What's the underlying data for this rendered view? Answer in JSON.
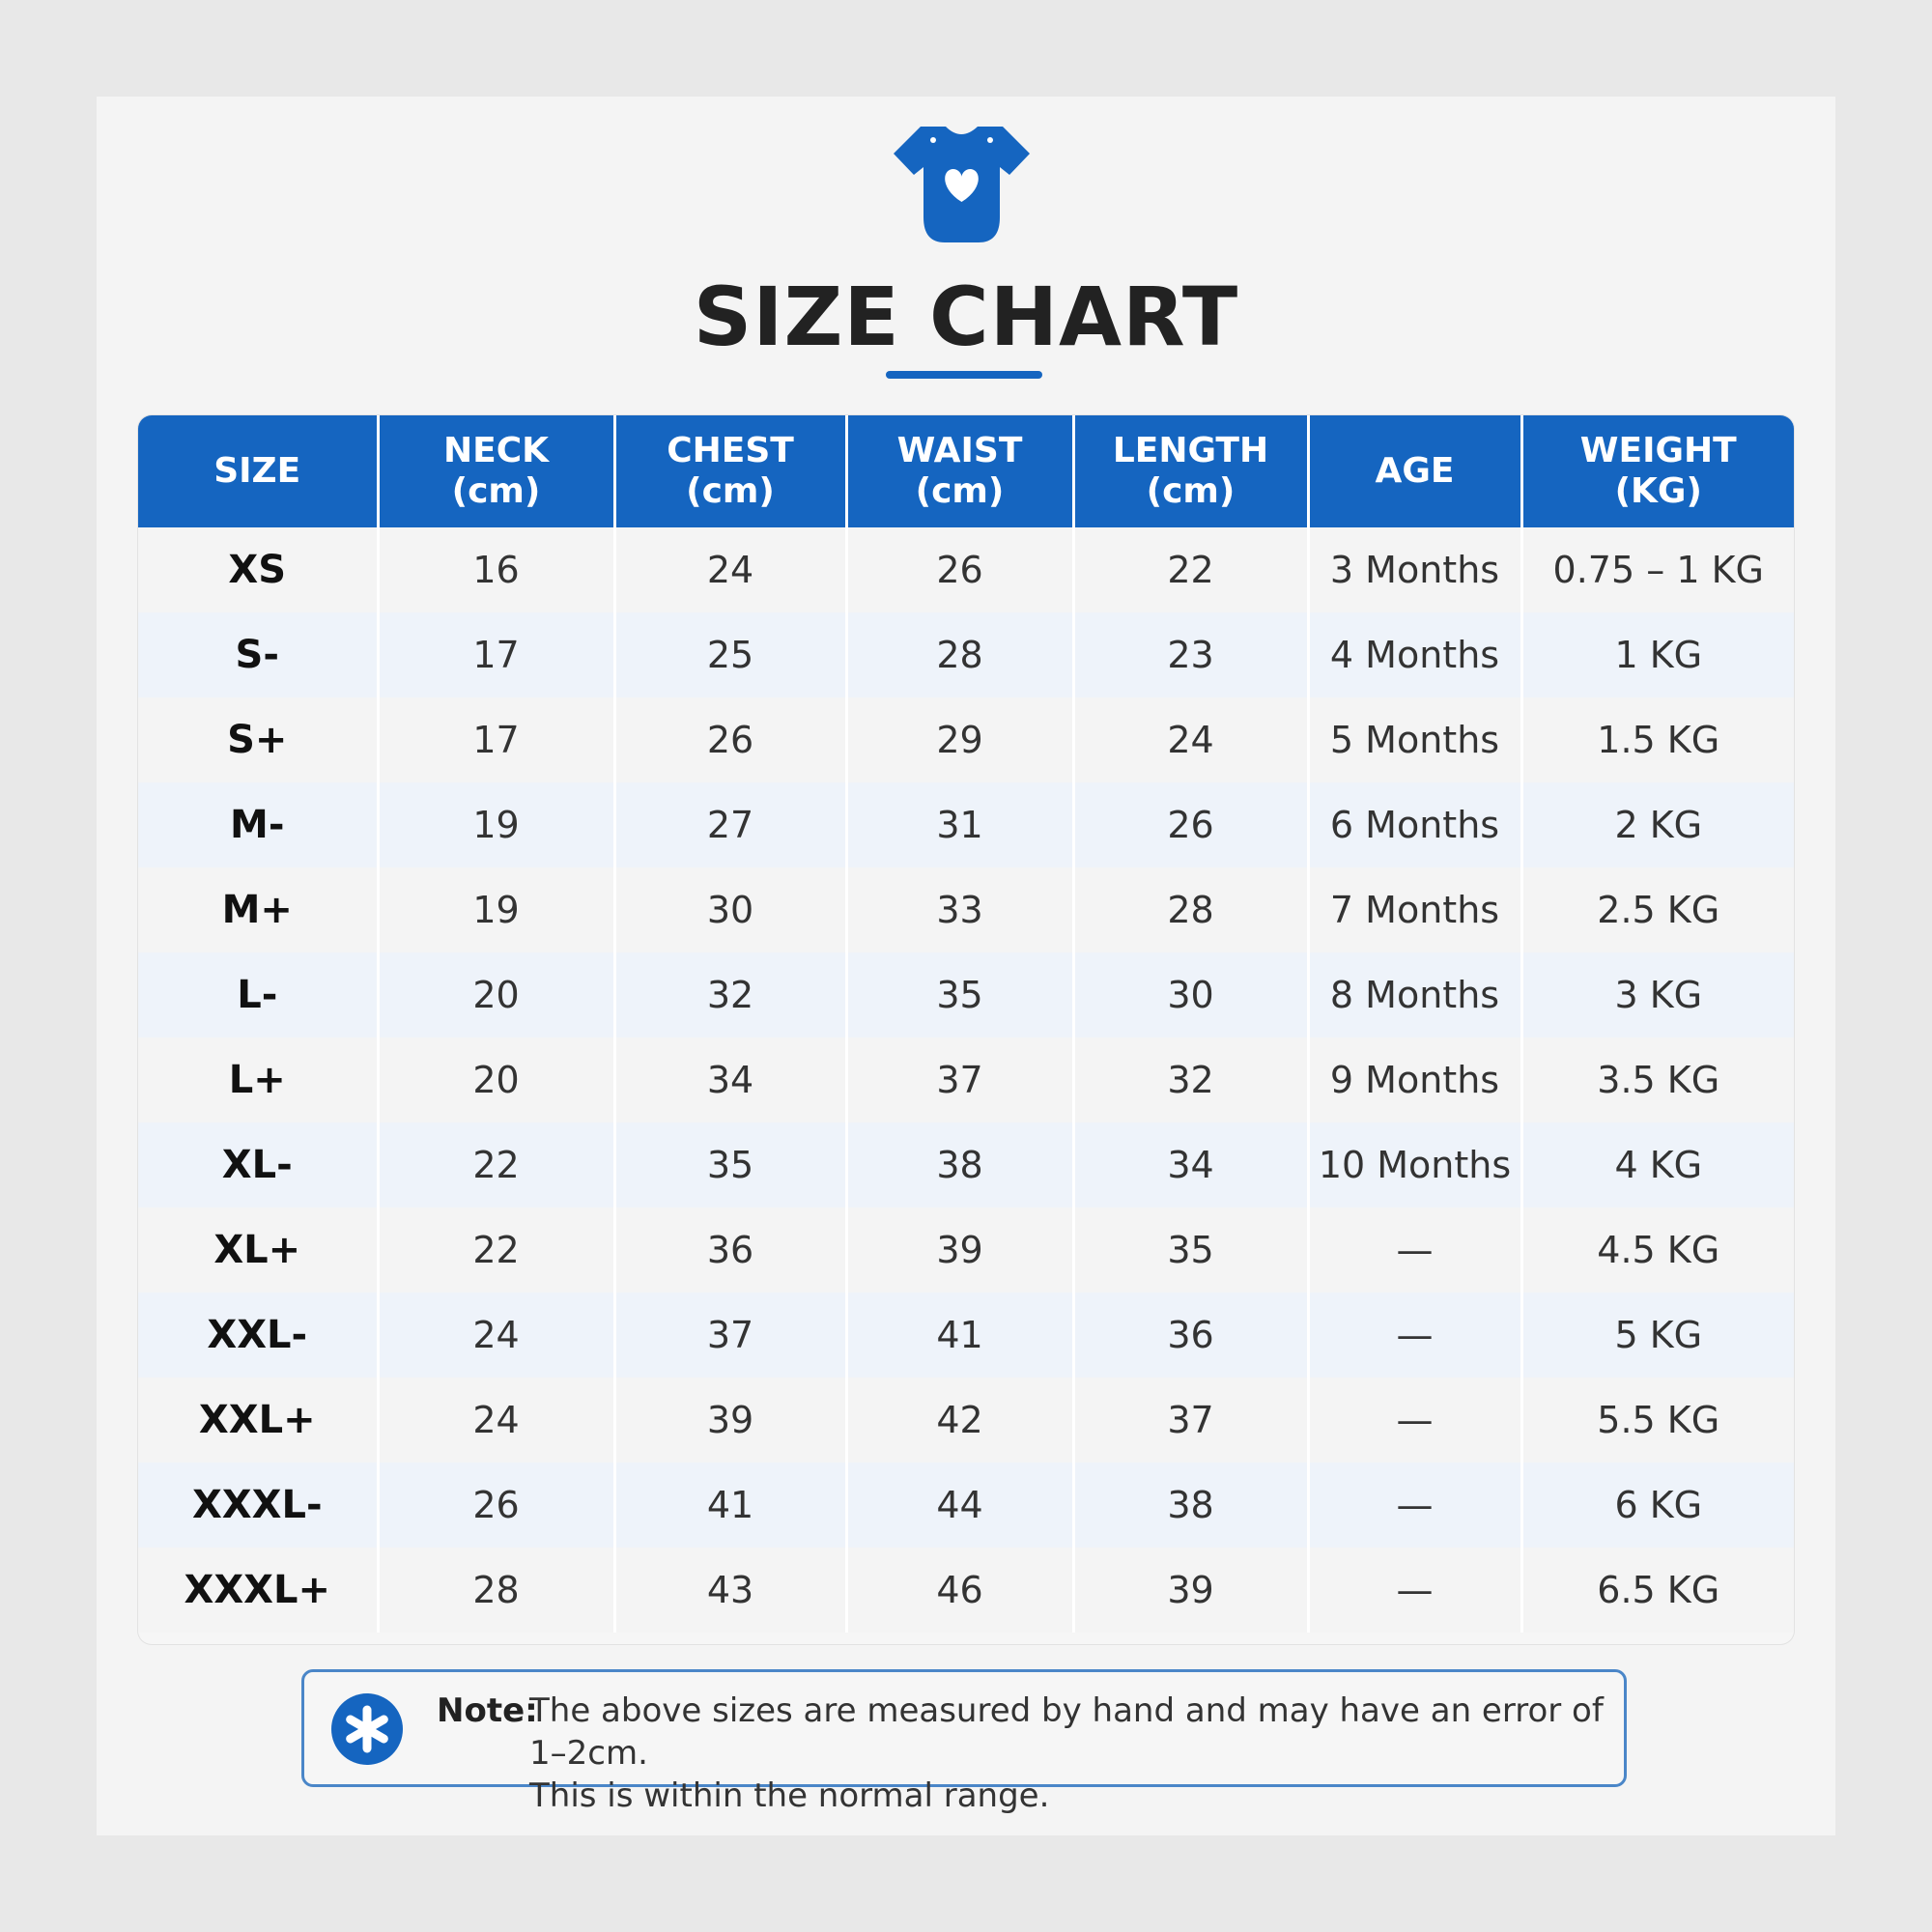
{
  "title": "SIZE CHART",
  "colors": {
    "accent": "#1565c0",
    "header_text": "#ffffff",
    "note_border": "#4a86c8"
  },
  "icons": {
    "logo": "baby-onesie-heart-icon",
    "note": "asterisk-icon"
  },
  "table": {
    "headers": [
      {
        "line1": "SIZE",
        "line2": ""
      },
      {
        "line1": "NECK",
        "line2": "(cm)"
      },
      {
        "line1": "CHEST",
        "line2": "(cm)"
      },
      {
        "line1": "WAIST",
        "line2": "(cm)"
      },
      {
        "line1": "LENGTH",
        "line2": "(cm)"
      },
      {
        "line1": "AGE",
        "line2": ""
      },
      {
        "line1": "WEIGHT",
        "line2": "(KG)"
      }
    ],
    "rows": [
      [
        "XS",
        "16",
        "24",
        "26",
        "22",
        "3 Months",
        "0.75 – 1 KG"
      ],
      [
        "S-",
        "17",
        "25",
        "28",
        "23",
        "4 Months",
        "1 KG"
      ],
      [
        "S+",
        "17",
        "26",
        "29",
        "24",
        "5 Months",
        "1.5 KG"
      ],
      [
        "M-",
        "19",
        "27",
        "31",
        "26",
        "6 Months",
        "2 KG"
      ],
      [
        "M+",
        "19",
        "30",
        "33",
        "28",
        "7 Months",
        "2.5 KG"
      ],
      [
        "L-",
        "20",
        "32",
        "35",
        "30",
        "8 Months",
        "3 KG"
      ],
      [
        "L+",
        "20",
        "34",
        "37",
        "32",
        "9 Months",
        "3.5 KG"
      ],
      [
        "XL-",
        "22",
        "35",
        "38",
        "34",
        "10 Months",
        "4 KG"
      ],
      [
        "XL+",
        "22",
        "36",
        "39",
        "35",
        "—",
        "4.5 KG"
      ],
      [
        "XXL-",
        "24",
        "37",
        "41",
        "36",
        "—",
        "5 KG"
      ],
      [
        "XXL+",
        "24",
        "39",
        "42",
        "37",
        "—",
        "5.5 KG"
      ],
      [
        "XXXL-",
        "26",
        "41",
        "44",
        "38",
        "—",
        "6 KG"
      ],
      [
        "XXXL+",
        "28",
        "43",
        "46",
        "39",
        "—",
        "6.5 KG"
      ]
    ]
  },
  "note": {
    "label": "Note:",
    "line1": "The above sizes are measured by hand and may have an error of 1–2cm.",
    "line2": "This is within the normal range."
  }
}
